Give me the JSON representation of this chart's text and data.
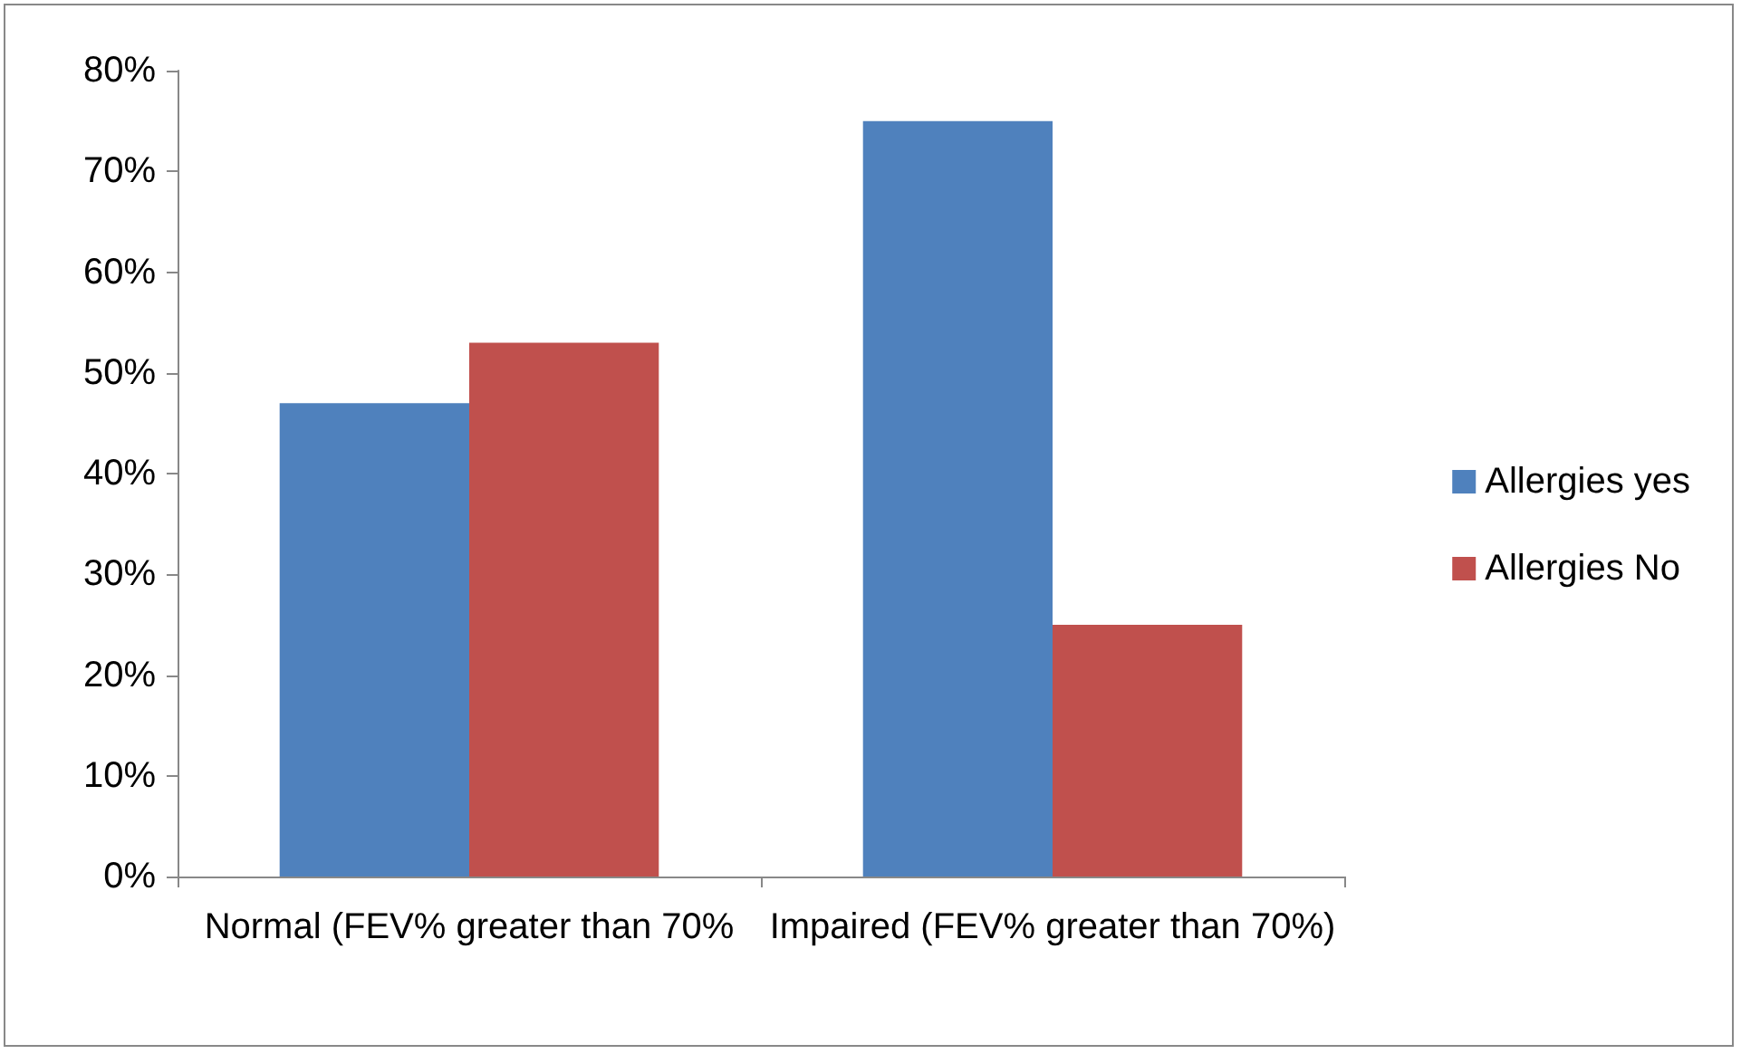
{
  "chart_data": {
    "type": "bar",
    "categories": [
      "Normal (FEV% greater than 70%",
      "Impaired (FEV% greater than 70%)"
    ],
    "series": [
      {
        "name": "Allergies yes",
        "color": "#4f81bd",
        "values": [
          47,
          75
        ]
      },
      {
        "name": "Allergies No",
        "color": "#c0504d",
        "values": [
          53,
          25
        ]
      }
    ],
    "ylim": [
      0,
      80
    ],
    "yticks": [
      {
        "value": 0,
        "label": "0%"
      },
      {
        "value": 10,
        "label": "10%"
      },
      {
        "value": 20,
        "label": "20%"
      },
      {
        "value": 30,
        "label": "30%"
      },
      {
        "value": 40,
        "label": "40%"
      },
      {
        "value": 50,
        "label": "50%"
      },
      {
        "value": 60,
        "label": "60%"
      },
      {
        "value": 70,
        "label": "70%"
      },
      {
        "value": 80,
        "label": "80%"
      }
    ],
    "grid": false,
    "legend": "right"
  }
}
